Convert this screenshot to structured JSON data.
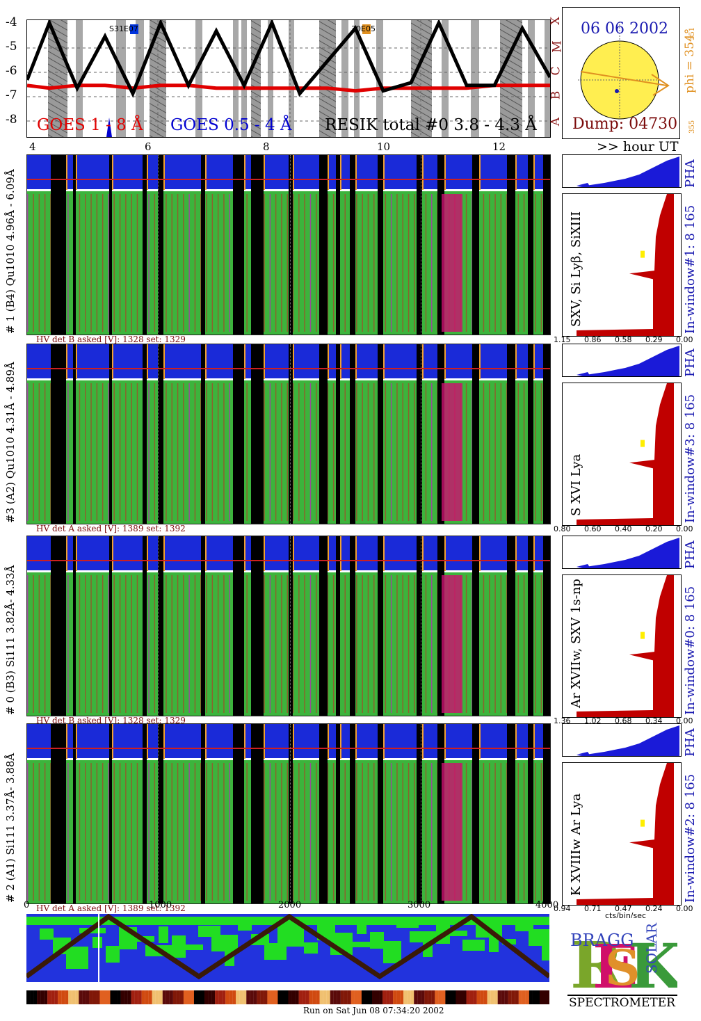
{
  "goes": {
    "yticks": [
      "-4",
      "-5",
      "-6",
      "-7",
      "-8"
    ],
    "classes": [
      "X",
      "M",
      "C",
      "B",
      "A"
    ],
    "xticks": [
      "4",
      "6",
      "8",
      "10",
      "12"
    ],
    "hour_label": ">> hour UT",
    "legend_goes_long": "GOES 1 - 8 Å",
    "legend_goes_short": "GOES 0.5 - 4 Å",
    "legend_resik": "RESIK total #0  3.8 - 4.3 Å",
    "ar_label_1": "S31E07",
    "ar_label_2": "30E05",
    "colors": {
      "goes_long": "#e00000",
      "goes_short": "#0000d0",
      "resik": "#000000"
    }
  },
  "sun": {
    "date": "06 06 2002",
    "dump": "Dump: 04730",
    "phi": "phi = 354°",
    "phi_top": "351",
    "phi_bottom": "355"
  },
  "detectors": [
    {
      "left_label": "# 1 (B4) Qu1010 4.96Å - 6.09Å",
      "line_label": "SXV, Si Lyβ, SiXIII",
      "window_label": "In-window#1:  8 165",
      "pha_label": "PHA",
      "hv": "HV det B asked [V]:  1328 set:  1329",
      "xticks": [
        "1.15",
        "0.86",
        "0.58",
        "0.29",
        "0.00"
      ]
    },
    {
      "left_label": "#3 (A2) Qu1010  4.31Å - 4.89Å",
      "line_label": "S XVI Lya",
      "window_label": "In-window#3:  8 165",
      "pha_label": "PHA",
      "hv": "HV det A asked [V]:  1389 set:  1392",
      "xticks": [
        "0.80",
        "0.60",
        "0.40",
        "0.20",
        "0.00"
      ]
    },
    {
      "left_label": "# 0 (B3) Si111  3.82Å- 4.33Å",
      "line_label": "Ar XVIIw,  SXV 1s-np",
      "window_label": "In-window#0:  8 165",
      "pha_label": "PHA",
      "hv": "HV det B asked [V]:  1328 set:  1329",
      "xticks": [
        "1.36",
        "1.02",
        "0.68",
        "0.34",
        "0.00"
      ]
    },
    {
      "left_label": "# 2 (A1) Si111  3.37Å- 3.88Å",
      "line_label": "K XVIIIw  Ar Lya",
      "window_label": "In-window#2:  8 165",
      "pha_label": "PHA",
      "hv": "HV det A asked [V]:  1389 set:  1392",
      "xticks": [
        "0.94",
        "0.71",
        "0.47",
        "0.24",
        "0.00"
      ]
    }
  ],
  "bottom": {
    "xticks": [
      "0",
      "1000",
      "2000",
      "3000",
      "4000"
    ],
    "units": "cts/bin/sec",
    "run_on": "Run on Sat Jun 08 07:34:20 2002"
  },
  "logo": {
    "big": "RESIK",
    "small_top": "BRAGG",
    "small_right": "SOLAR",
    "spectrometer": "SPECTROMETER"
  },
  "chart_data": [
    {
      "type": "line",
      "x": [
        3.6,
        4.0,
        4.5,
        5.0,
        5.5,
        6.0,
        6.5,
        7.0,
        7.5,
        8.0,
        8.5,
        9.0,
        9.5,
        10.0,
        10.5,
        11.0,
        11.5,
        12.0,
        12.5,
        13.0
      ],
      "series": [
        {
          "values": [
            -6.3,
            -6.4,
            -6.3,
            -6.3,
            -6.4,
            -6.3,
            -6.3,
            -6.4,
            -6.4,
            -6.4,
            -6.4,
            -6.4,
            -6.5,
            -6.4,
            -6.4,
            -6.4,
            -6.4,
            -6.3,
            -6.3,
            -6.3
          ]
        },
        {
          "values": [
            -6.1,
            -4.0,
            -6.4,
            -4.5,
            -6.6,
            -4.0,
            -6.3,
            -4.3,
            -6.3,
            -4.0,
            -6.6,
            -5.4,
            -4.2,
            -6.5,
            -6.2,
            -4.0,
            -6.3,
            -6.3,
            -4.2,
            -6.0
          ]
        }
      ],
      "yticks": [
        -4,
        -5,
        -6,
        -7,
        -8
      ],
      "ylim": [
        -8.2,
        -3.9
      ],
      "xlim": [
        3.6,
        13.0
      ]
    },
    {
      "type": "bar",
      "categories": [
        "1.15",
        "0.86",
        "0.58",
        "0.29",
        "0.00"
      ],
      "values": [
        0.02,
        0.05,
        0.35,
        0.45,
        0.5
      ]
    }
  ]
}
